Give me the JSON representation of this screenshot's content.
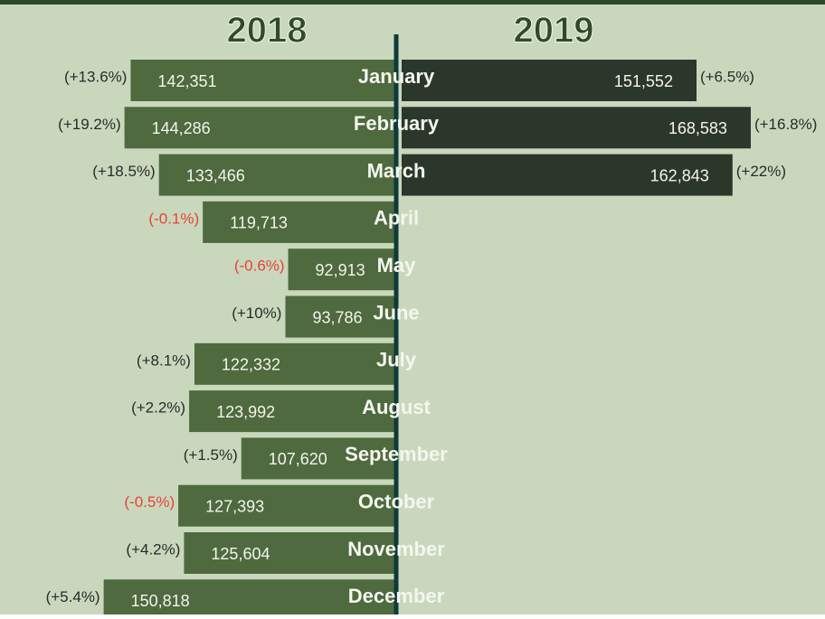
{
  "chart_data": {
    "type": "butterfly",
    "categories": [
      "January",
      "February",
      "March",
      "April",
      "May",
      "June",
      "July",
      "August",
      "September",
      "October",
      "November",
      "December"
    ],
    "xlim": [
      59000,
      172000
    ],
    "series": [
      {
        "name": "2018",
        "color": "#4e6a3e",
        "values": [
          142351,
          144286,
          133466,
          119713,
          92913,
          93786,
          122332,
          123992,
          107620,
          127393,
          125604,
          150818
        ],
        "value_labels": [
          "142,351",
          "144,286",
          "133,466",
          "119,713",
          "92,913",
          "93,786",
          "122,332",
          "123,992",
          "107,620",
          "127,393",
          "125,604",
          "150,818"
        ],
        "change_labels": [
          "(+13.6%)",
          "(+19.2%)",
          "(+18.5%)",
          "(-0.1%)",
          "(-0.6%)",
          "(+10%)",
          "(+8.1%)",
          "(+2.2%)",
          "(+1.5%)",
          "(-0.5%)",
          "(+4.2%)",
          "(+5.4%)"
        ]
      },
      {
        "name": "2019",
        "color": "#2b372b",
        "values": [
          151552,
          168583,
          162843,
          null,
          null,
          null,
          null,
          null,
          null,
          null,
          null,
          null
        ],
        "value_labels": [
          "151,552",
          "168,583",
          "162,843",
          null,
          null,
          null,
          null,
          null,
          null,
          null,
          null,
          null
        ],
        "change_labels": [
          "(+6.5%)",
          "(+16.8%)",
          "(+22%)",
          null,
          null,
          null,
          null,
          null,
          null,
          null,
          null,
          null
        ]
      }
    ]
  }
}
